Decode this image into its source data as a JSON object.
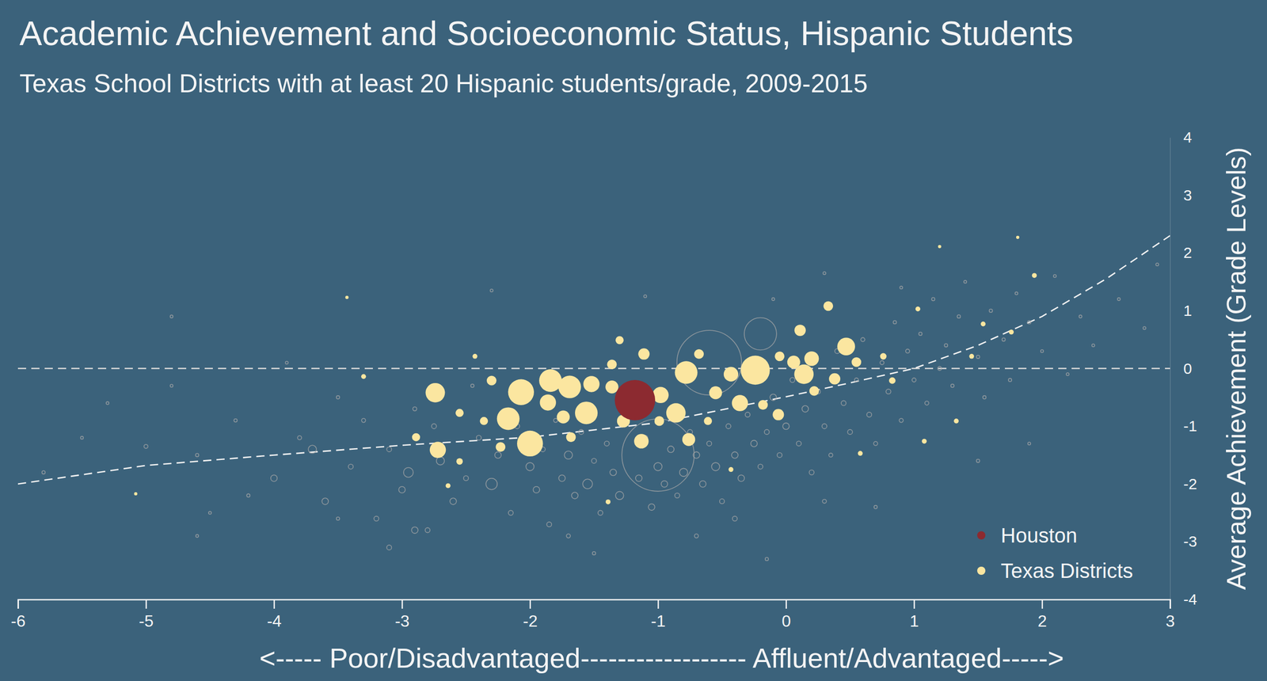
{
  "chart_data": {
    "type": "scatter",
    "title": "Academic Achievement and Socioeconomic Status, Hispanic Students",
    "subtitle": "Texas School Districts with at least 20 Hispanic students/grade, 2009-2015",
    "x_label": "<----- Poor/Disadvantaged------------------ Affluent/Advantaged----->",
    "y_label": "Average Achievement (Grade Levels)",
    "xlim": [
      -6,
      3
    ],
    "xticks": [
      -6,
      -5,
      -4,
      -3,
      -2,
      -1,
      0,
      1,
      2,
      3
    ],
    "ylim": [
      -4,
      4
    ],
    "yticks": [
      -4,
      -3,
      -2,
      -1,
      0,
      1,
      2,
      3,
      4
    ],
    "grid": false,
    "legend": "lower right",
    "series": [
      {
        "name": "Houston",
        "color": "#8c2a30",
        "marker": "circle",
        "x": [
          -1.18
        ],
        "values": [
          -0.55
        ],
        "size": [
          625
        ]
      },
      {
        "name": "Texas Districts",
        "color": "#fbe6a0",
        "marker": "circle",
        "x": [
          -2.74,
          -2.07,
          -2.0,
          -2.17,
          -1.84,
          -1.69,
          -1.52,
          -1.56,
          -1.86,
          -2.72,
          -1.74,
          -1.36,
          -1.11,
          -0.98,
          -0.86,
          -0.78,
          -1.13,
          -0.76,
          -0.68,
          -0.24,
          -0.43,
          -0.36,
          -0.55,
          0.11,
          0.06,
          0.14,
          0.2,
          0.33,
          0.47,
          0.38,
          -0.06,
          -0.18,
          0.55,
          0.22,
          -1.36,
          -2.3,
          -2.23,
          -2.36,
          -2.55,
          -2.89,
          -3.3,
          -3.43,
          -1.68,
          -1.27,
          -0.99,
          -0.61,
          -1.3,
          -0.05,
          0.76,
          0.83,
          1.03,
          1.45,
          1.76,
          1.94,
          1.81,
          1.2,
          1.08,
          0.58,
          -0.43,
          -1.39,
          -2.64,
          -2.55,
          -2.43,
          1.33,
          1.54,
          -5.08
        ],
        "values": [
          -0.42,
          -0.41,
          -1.3,
          -0.87,
          -0.21,
          -0.32,
          -0.27,
          -0.77,
          -0.59,
          -1.41,
          -0.84,
          -0.32,
          0.25,
          -0.46,
          -0.77,
          -0.07,
          -1.26,
          -1.23,
          0.25,
          -0.03,
          -0.1,
          -0.6,
          -0.42,
          0.66,
          0.11,
          -0.1,
          0.17,
          1.08,
          0.38,
          -0.18,
          -0.8,
          -0.63,
          0.11,
          -0.39,
          0.07,
          -0.21,
          -1.36,
          -0.91,
          -0.77,
          -1.19,
          -0.14,
          1.23,
          -1.19,
          -0.91,
          -0.91,
          -0.91,
          0.49,
          0.21,
          0.21,
          -0.21,
          1.03,
          0.21,
          0.63,
          1.61,
          2.27,
          2.11,
          -1.26,
          -1.47,
          -1.75,
          -2.31,
          -2.03,
          -1.61,
          0.21,
          -0.91,
          0.77,
          -2.17
        ],
        "size": [
          144,
          256,
          256,
          196,
          196,
          196,
          100,
          196,
          100,
          100,
          64,
          64,
          49,
          100,
          144,
          196,
          81,
          64,
          36,
          324,
          81,
          100,
          64,
          49,
          64,
          144,
          81,
          36,
          121,
          49,
          49,
          36,
          36,
          36,
          36,
          36,
          36,
          25,
          25,
          25,
          9,
          4,
          36,
          64,
          36,
          25,
          25,
          36,
          16,
          16,
          9,
          9,
          9,
          9,
          4,
          4,
          9,
          9,
          9,
          9,
          9,
          16,
          9,
          9,
          9,
          4
        ]
      },
      {
        "color": "#a7a7a7",
        "marker": "open-circle",
        "x": [
          -5.8,
          -5.5,
          -5.3,
          -5.0,
          -4.8,
          -4.6,
          -4.5,
          -4.3,
          -4.2,
          -4.0,
          -3.9,
          -3.8,
          -3.7,
          -3.6,
          -3.5,
          -3.4,
          -3.3,
          -3.2,
          -3.1,
          -3.0,
          -2.95,
          -2.9,
          -2.8,
          -2.75,
          -2.7,
          -2.6,
          -2.5,
          -2.45,
          -2.4,
          -2.3,
          -2.25,
          -2.15,
          -2.1,
          -2.0,
          -1.95,
          -1.9,
          -1.85,
          -1.8,
          -1.75,
          -1.7,
          -1.65,
          -1.6,
          -1.55,
          -1.5,
          -1.45,
          -1.4,
          -1.35,
          -1.3,
          -1.0,
          -1.15,
          -1.1,
          -1.05,
          -1.0,
          -0.95,
          -0.9,
          -0.85,
          -0.8,
          -0.75,
          -0.7,
          -0.65,
          -0.6,
          -0.55,
          -0.5,
          -0.45,
          -0.4,
          -0.35,
          -0.3,
          -0.25,
          -0.2,
          -0.15,
          -0.1,
          -0.05,
          0.0,
          0.05,
          0.1,
          0.15,
          0.2,
          0.25,
          0.3,
          0.35,
          0.4,
          0.45,
          0.5,
          0.55,
          0.6,
          0.65,
          0.7,
          0.75,
          0.8,
          0.85,
          0.9,
          0.95,
          1.0,
          1.05,
          1.1,
          1.15,
          1.2,
          1.25,
          1.3,
          1.35,
          1.4,
          1.5,
          1.55,
          1.6,
          1.7,
          1.75,
          1.8,
          1.9,
          2.0,
          2.1,
          2.2,
          2.3,
          2.4,
          2.6,
          2.8,
          2.9,
          -0.6,
          -0.2,
          -3.1,
          -2.9,
          -1.7,
          -1.5,
          -0.7,
          -0.15,
          -0.4,
          0.3,
          0.7,
          1.5,
          1.9,
          -4.6,
          -3.5,
          -2.3,
          -1.1,
          -0.1,
          0.3,
          -4.8,
          0.9
        ],
        "values": [
          -1.8,
          -1.2,
          -0.6,
          -1.35,
          -0.3,
          -1.5,
          -2.5,
          -0.9,
          -2.2,
          -1.9,
          0.1,
          -1.2,
          -1.4,
          -2.3,
          -0.5,
          -1.7,
          -0.9,
          -2.6,
          -1.4,
          -2.1,
          -1.8,
          -0.7,
          -2.8,
          -1.0,
          -1.6,
          -2.3,
          -1.9,
          -0.3,
          -1.2,
          -2.0,
          -1.5,
          -2.5,
          -1.0,
          -1.7,
          -2.1,
          -1.4,
          -2.7,
          -0.9,
          -1.9,
          -1.5,
          -2.2,
          -1.1,
          -2.0,
          -1.6,
          -2.5,
          -1.3,
          -1.8,
          -2.2,
          -1.5,
          -1.9,
          -1.2,
          -2.4,
          -1.7,
          -2.0,
          -1.4,
          -2.2,
          -1.8,
          -1.1,
          -1.5,
          -2.0,
          -1.3,
          -1.7,
          -2.3,
          -1.0,
          -1.5,
          -1.9,
          -0.8,
          -1.3,
          -1.7,
          -1.1,
          -0.5,
          -1.5,
          -1.0,
          -0.2,
          -1.3,
          -0.7,
          -1.8,
          -0.4,
          -1.0,
          -1.5,
          0.3,
          -0.6,
          -1.1,
          -0.2,
          0.5,
          -0.8,
          -1.3,
          0.1,
          -0.4,
          0.8,
          -0.9,
          0.3,
          -0.2,
          0.6,
          -0.6,
          1.2,
          0.0,
          0.4,
          -0.3,
          0.9,
          1.5,
          0.2,
          -0.5,
          1.0,
          0.5,
          -0.2,
          1.3,
          0.8,
          0.3,
          1.6,
          -0.1,
          0.9,
          0.4,
          1.2,
          0.7,
          1.8,
          0.1,
          0.6,
          -3.1,
          -2.8,
          -2.9,
          -3.2,
          -2.9,
          -3.3,
          -2.6,
          -2.3,
          -2.4,
          -1.6,
          -1.3,
          -2.9,
          -2.6,
          1.35,
          1.25,
          1.2,
          1.65,
          0.9,
          1.4
        ],
        "size": [
          4,
          3,
          3,
          6,
          3,
          4,
          3,
          4,
          4,
          16,
          3,
          6,
          25,
          16,
          4,
          9,
          6,
          9,
          9,
          16,
          36,
          6,
          9,
          9,
          25,
          16,
          9,
          4,
          9,
          49,
          16,
          9,
          9,
          25,
          16,
          9,
          9,
          6,
          16,
          25,
          16,
          9,
          36,
          9,
          9,
          9,
          16,
          25,
          2000,
          16,
          9,
          16,
          25,
          16,
          16,
          9,
          25,
          9,
          16,
          16,
          9,
          25,
          9,
          9,
          16,
          16,
          9,
          16,
          9,
          9,
          16,
          9,
          16,
          9,
          9,
          16,
          9,
          9,
          9,
          6,
          9,
          9,
          9,
          6,
          6,
          9,
          6,
          6,
          9,
          4,
          6,
          6,
          6,
          4,
          6,
          4,
          6,
          4,
          4,
          4,
          3,
          4,
          4,
          4,
          4,
          4,
          3,
          4,
          3,
          3,
          3,
          3,
          3,
          3,
          3,
          3,
          1600,
          400,
          9,
          16,
          6,
          4,
          6,
          4,
          9,
          6,
          4,
          4,
          3,
          3,
          4,
          3,
          3,
          3,
          3,
          3,
          3
        ]
      },
      {
        "type": "line",
        "line_style": "dashed",
        "color": "#f2f2f2",
        "x": [
          -6,
          -5,
          -4,
          -3,
          -2,
          -1,
          0,
          0.5,
          1,
          1.5,
          2,
          2.5,
          3
        ],
        "values": [
          -2.0,
          -1.68,
          -1.5,
          -1.33,
          -1.19,
          -0.94,
          -0.49,
          -0.25,
          0.0,
          0.4,
          0.9,
          1.55,
          2.3
        ]
      },
      {
        "type": "line",
        "line_style": "dashed",
        "color": "#d9d9d9",
        "x": [
          -6,
          3
        ],
        "values": [
          0,
          0
        ]
      }
    ]
  }
}
